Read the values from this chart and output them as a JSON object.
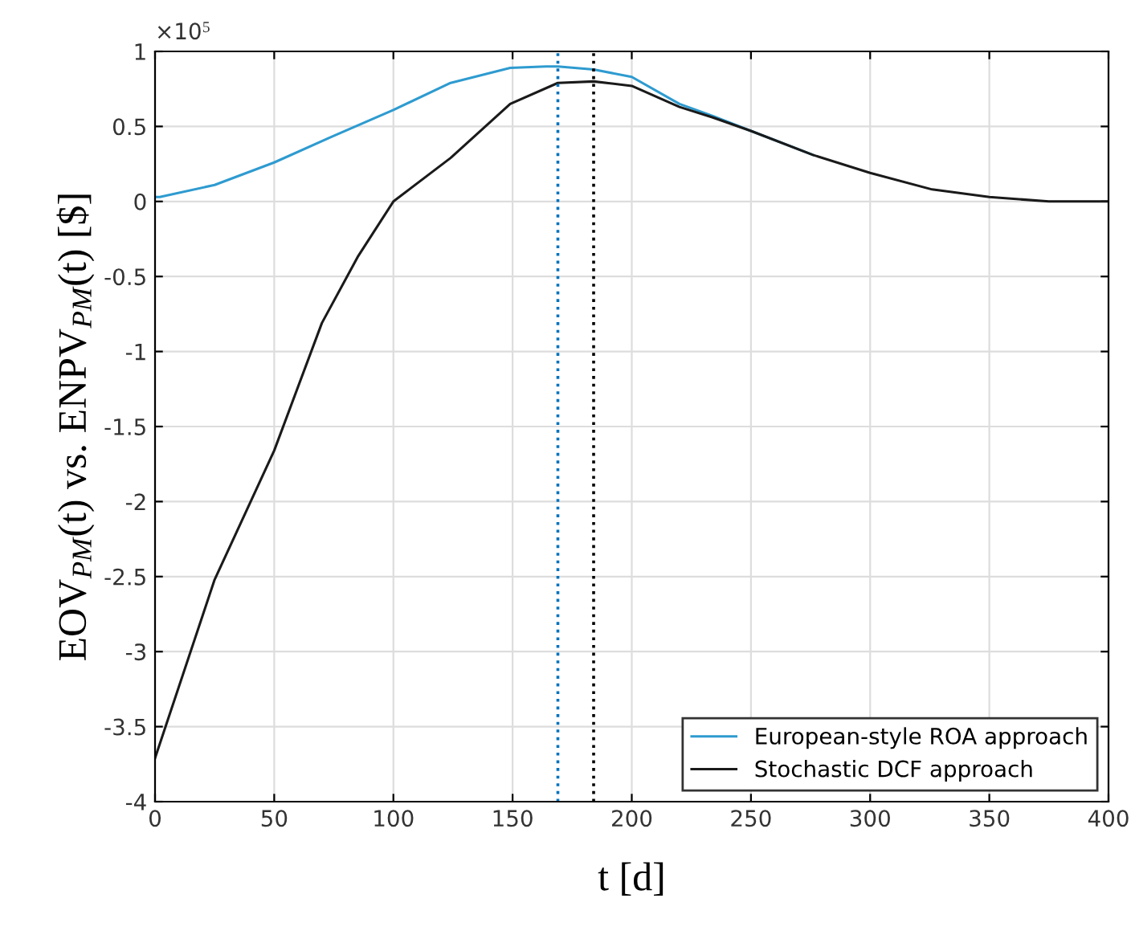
{
  "chart_data": {
    "type": "line",
    "xlabel": "t [d]",
    "ylabel": "EOV$_{PM}$(t) vs. ENPV$_{PM}$(t) [$]",
    "annotations": [
      "×10$^{5}$"
    ],
    "series": [
      {
        "name": "European-style ROA approach",
        "color": "#2e9bd0",
        "x": [
          0,
          2,
          25,
          50,
          74,
          100,
          124,
          149,
          164,
          169,
          184,
          200,
          220,
          234,
          250,
          276
        ],
        "values": [
          0.03,
          0.03,
          0.11,
          0.26,
          0.43,
          0.61,
          0.79,
          0.89,
          0.9,
          0.9,
          0.88,
          0.83,
          0.65,
          0.57,
          0.47,
          0.31
        ]
      },
      {
        "name": "Stochastic DCF approach",
        "color": "#1a1a1a",
        "x": [
          0,
          25,
          50,
          70,
          85,
          100,
          124,
          149,
          169,
          184,
          200,
          220,
          234,
          250,
          276,
          300,
          326,
          350,
          375,
          400
        ],
        "values": [
          -3.71,
          -2.52,
          -1.66,
          -0.81,
          -0.37,
          0.0,
          0.29,
          0.65,
          0.79,
          0.8,
          0.77,
          0.63,
          0.56,
          0.47,
          0.31,
          0.19,
          0.08,
          0.03,
          0.0,
          0.0
        ]
      }
    ],
    "ref_lines": [
      {
        "axis": "x",
        "value": 169,
        "color": "#0072bd",
        "line_style": "dotted"
      },
      {
        "axis": "x",
        "value": 184,
        "color": "#000000",
        "line_style": "dotted"
      }
    ],
    "xlim": [
      0,
      400
    ],
    "xticks": [
      0,
      50,
      100,
      150,
      200,
      250,
      300,
      350,
      400
    ],
    "ylim": [
      -4,
      1
    ],
    "yticks": [
      -4,
      -3.5,
      -3,
      -2.5,
      -2,
      -1.5,
      -1,
      -0.5,
      0,
      0.5,
      1
    ],
    "grid": true,
    "legend": "bottom right",
    "marker": "none",
    "line_style": "solid"
  }
}
